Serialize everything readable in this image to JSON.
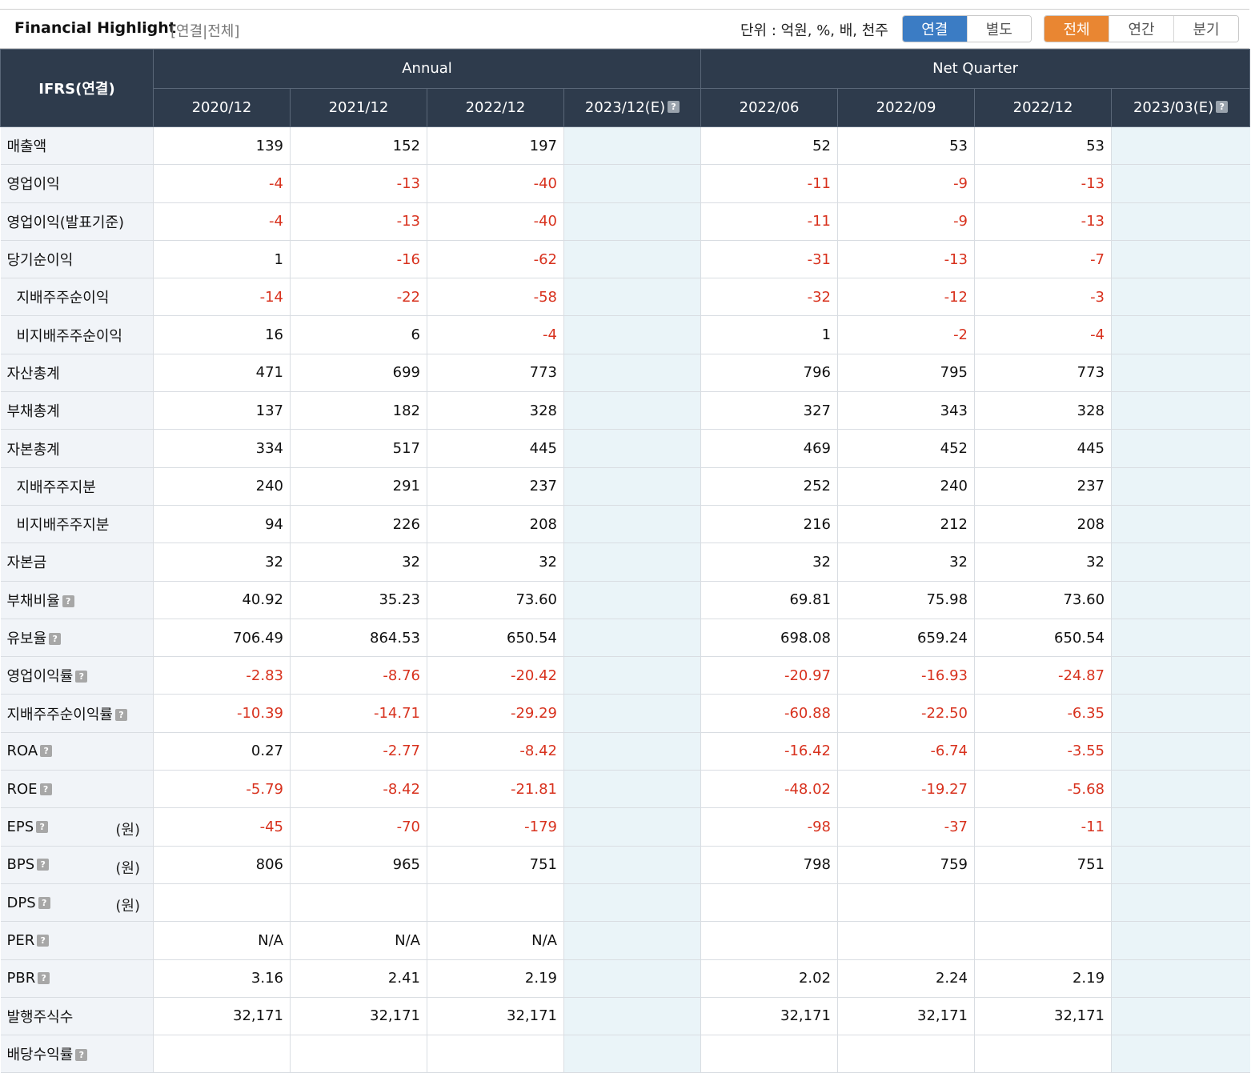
{
  "header": {
    "title": "Financial Highlight",
    "subtitle": "[연결|전체]",
    "unit": "단위 : 억원, %, 배, 천주",
    "scope_buttons": [
      {
        "label": "연결",
        "active": true
      },
      {
        "label": "별도",
        "active": false
      }
    ],
    "period_buttons": [
      {
        "label": "전체",
        "active": true
      },
      {
        "label": "연간",
        "active": false
      },
      {
        "label": "분기",
        "active": false
      }
    ]
  },
  "table": {
    "corner": "IFRS(연결)",
    "group_annual": "Annual",
    "group_quarter": "Net Quarter",
    "columns": [
      "2020/12",
      "2021/12",
      "2022/12",
      "2023/12(E)",
      "2022/06",
      "2022/09",
      "2022/12",
      "2023/03(E)"
    ],
    "estimate_columns": [
      3,
      7
    ],
    "rows": [
      {
        "label": "매출액",
        "values": [
          "139",
          "152",
          "197",
          "",
          "52",
          "53",
          "53",
          ""
        ]
      },
      {
        "label": "영업이익",
        "values": [
          "-4",
          "-13",
          "-40",
          "",
          "-11",
          "-9",
          "-13",
          ""
        ]
      },
      {
        "label": "영업이익(발표기준)",
        "values": [
          "-4",
          "-13",
          "-40",
          "",
          "-11",
          "-9",
          "-13",
          ""
        ]
      },
      {
        "label": "당기순이익",
        "values": [
          "1",
          "-16",
          "-62",
          "",
          "-31",
          "-13",
          "-7",
          ""
        ]
      },
      {
        "label": "지배주주순이익",
        "indent": true,
        "values": [
          "-14",
          "-22",
          "-58",
          "",
          "-32",
          "-12",
          "-3",
          ""
        ]
      },
      {
        "label": "비지배주주순이익",
        "indent": true,
        "values": [
          "16",
          "6",
          "-4",
          "",
          "1",
          "-2",
          "-4",
          ""
        ]
      },
      {
        "label": "자산총계",
        "values": [
          "471",
          "699",
          "773",
          "",
          "796",
          "795",
          "773",
          ""
        ]
      },
      {
        "label": "부채총계",
        "values": [
          "137",
          "182",
          "328",
          "",
          "327",
          "343",
          "328",
          ""
        ]
      },
      {
        "label": "자본총계",
        "values": [
          "334",
          "517",
          "445",
          "",
          "469",
          "452",
          "445",
          ""
        ]
      },
      {
        "label": "지배주주지분",
        "indent": true,
        "values": [
          "240",
          "291",
          "237",
          "",
          "252",
          "240",
          "237",
          ""
        ]
      },
      {
        "label": "비지배주주지분",
        "indent": true,
        "values": [
          "94",
          "226",
          "208",
          "",
          "216",
          "212",
          "208",
          ""
        ]
      },
      {
        "label": "자본금",
        "values": [
          "32",
          "32",
          "32",
          "",
          "32",
          "32",
          "32",
          ""
        ]
      },
      {
        "label": "부채비율",
        "help": true,
        "values": [
          "40.92",
          "35.23",
          "73.60",
          "",
          "69.81",
          "75.98",
          "73.60",
          ""
        ]
      },
      {
        "label": "유보율",
        "help": true,
        "values": [
          "706.49",
          "864.53",
          "650.54",
          "",
          "698.08",
          "659.24",
          "650.54",
          ""
        ]
      },
      {
        "label": "영업이익률",
        "help": true,
        "values": [
          "-2.83",
          "-8.76",
          "-20.42",
          "",
          "-20.97",
          "-16.93",
          "-24.87",
          ""
        ]
      },
      {
        "label": "지배주주순이익률",
        "help": true,
        "values": [
          "-10.39",
          "-14.71",
          "-29.29",
          "",
          "-60.88",
          "-22.50",
          "-6.35",
          ""
        ]
      },
      {
        "label": "ROA",
        "help": true,
        "values": [
          "0.27",
          "-2.77",
          "-8.42",
          "",
          "-16.42",
          "-6.74",
          "-3.55",
          ""
        ]
      },
      {
        "label": "ROE",
        "help": true,
        "values": [
          "-5.79",
          "-8.42",
          "-21.81",
          "",
          "-48.02",
          "-19.27",
          "-5.68",
          ""
        ]
      },
      {
        "label": "EPS",
        "help": true,
        "unit": "(원)",
        "values": [
          "-45",
          "-70",
          "-179",
          "",
          "-98",
          "-37",
          "-11",
          ""
        ]
      },
      {
        "label": "BPS",
        "help": true,
        "unit": "(원)",
        "values": [
          "806",
          "965",
          "751",
          "",
          "798",
          "759",
          "751",
          ""
        ]
      },
      {
        "label": "DPS",
        "help": true,
        "unit": "(원)",
        "values": [
          "",
          "",
          "",
          "",
          "",
          "",
          "",
          ""
        ]
      },
      {
        "label": "PER",
        "help": true,
        "values": [
          "N/A",
          "N/A",
          "N/A",
          "",
          "",
          "",
          "",
          ""
        ]
      },
      {
        "label": "PBR",
        "help": true,
        "values": [
          "3.16",
          "2.41",
          "2.19",
          "",
          "2.02",
          "2.24",
          "2.19",
          ""
        ]
      },
      {
        "label": "발행주식수",
        "values": [
          "32,171",
          "32,171",
          "32,171",
          "",
          "32,171",
          "32,171",
          "32,171",
          ""
        ]
      },
      {
        "label": "배당수익률",
        "help": true,
        "values": [
          "",
          "",
          "",
          "",
          "",
          "",
          "",
          ""
        ]
      }
    ]
  },
  "colors": {
    "header_bg": "#2e3b4c",
    "label_bg": "#f1f4f8",
    "estimate_bg": "#eaf4f8",
    "negative": "#d8321e",
    "scope_active": "#3b7cc4",
    "period_active": "#e98632"
  },
  "icons": {
    "help": "question-icon"
  }
}
